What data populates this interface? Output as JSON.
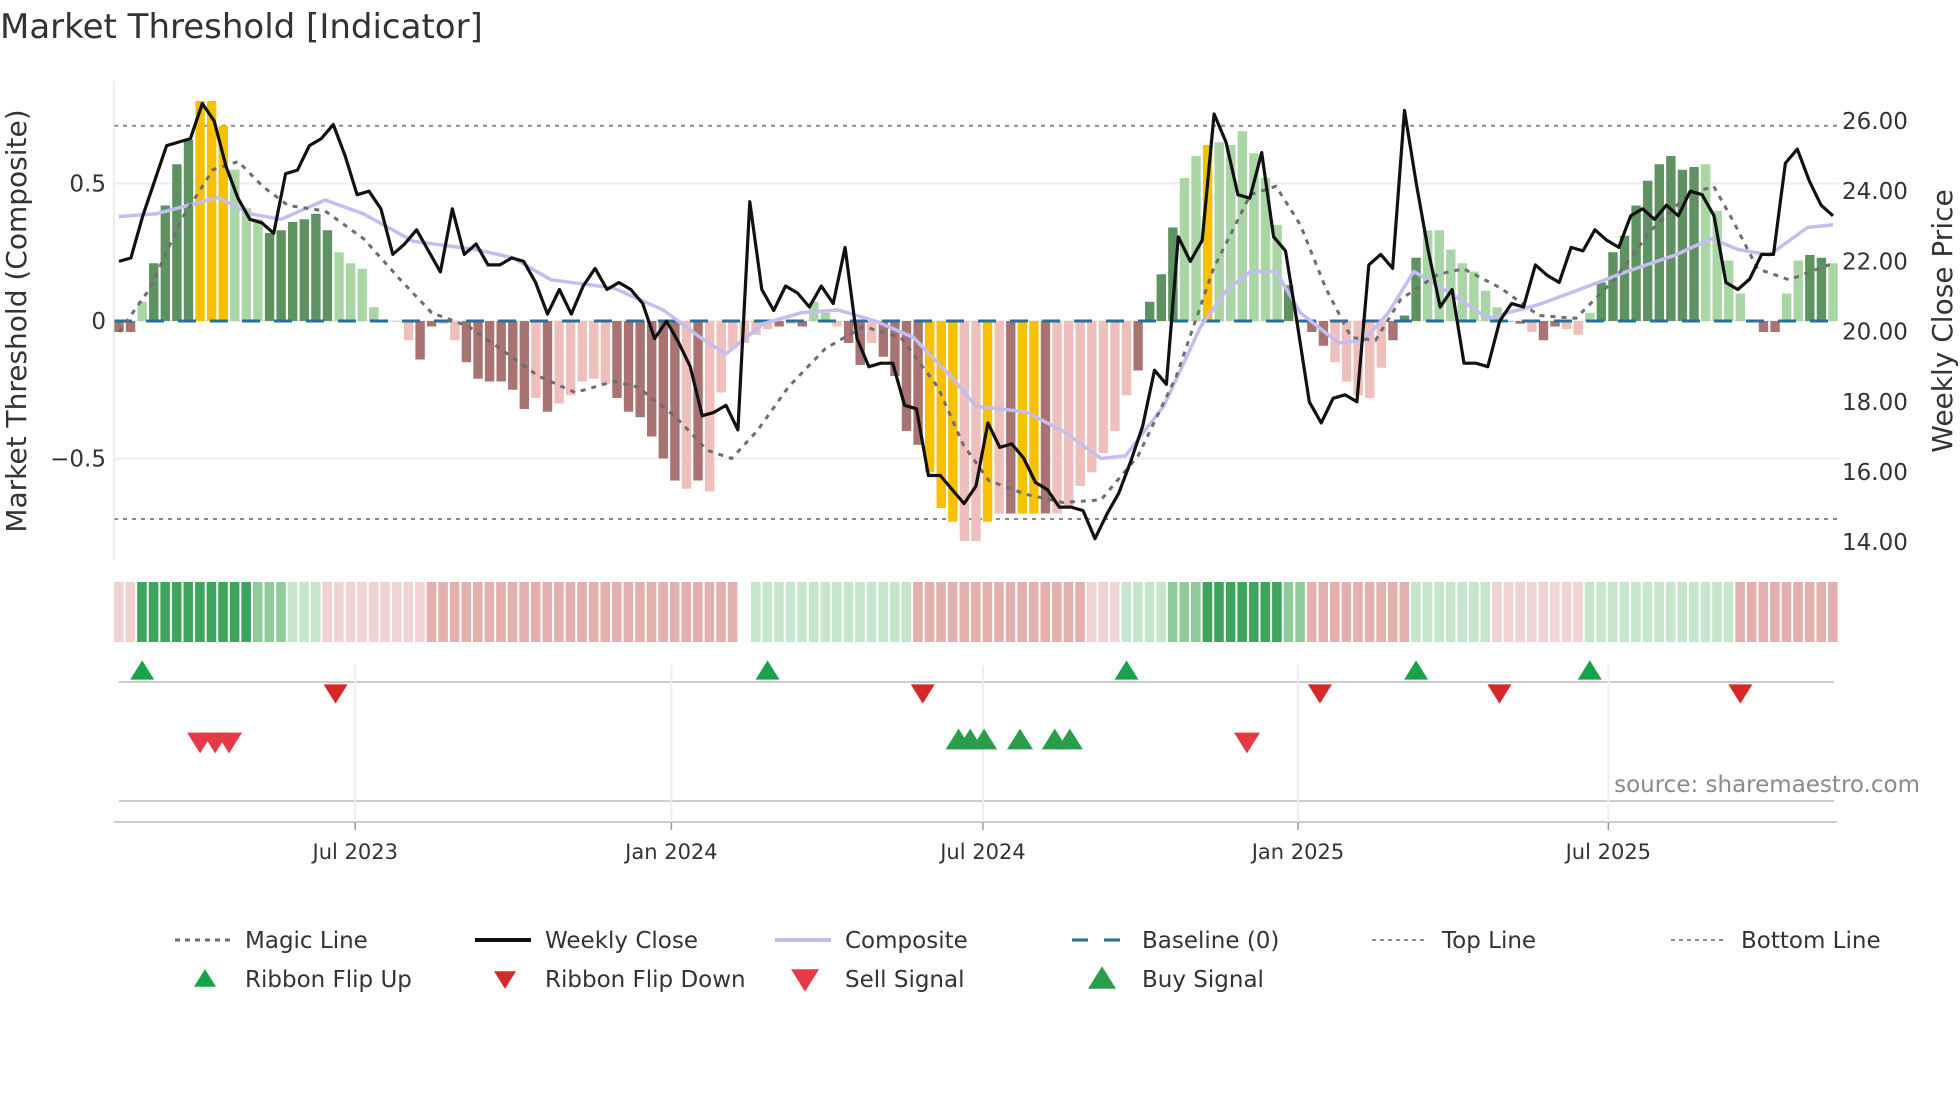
{
  "chart_data": {
    "type": "bar",
    "title": "Market Threshold [Indicator]",
    "ylabel": "Market Threshold (Composite)",
    "y2label": "Weekly Close Price",
    "source": "source: sharemaestro.com",
    "ylim": [
      -0.87,
      0.87
    ],
    "y2lim": [
      13.6,
      27.3
    ],
    "yticks": [
      {
        "v": 0.5,
        "label": "0.5"
      },
      {
        "v": 0,
        "label": "0"
      },
      {
        "v": -0.5,
        "label": "−0.5"
      }
    ],
    "y2ticks": [
      {
        "v": 26,
        "label": "26.00"
      },
      {
        "v": 24,
        "label": "24.00"
      },
      {
        "v": 22,
        "label": "22.00"
      },
      {
        "v": 20,
        "label": "20.00"
      },
      {
        "v": 18,
        "label": "18.00"
      },
      {
        "v": 16,
        "label": "16.00"
      },
      {
        "v": 14,
        "label": "14.00"
      }
    ],
    "xticks": [
      {
        "week": 20.4,
        "label": "Jul 2023"
      },
      {
        "week": 47.7,
        "label": "Jan 2024"
      },
      {
        "week": 74.6,
        "label": "Jul 2024"
      },
      {
        "week": 101.8,
        "label": "Jan 2025"
      },
      {
        "week": 128.6,
        "label": "Jul 2025"
      }
    ],
    "top_line": 0.71,
    "bottom_line": -0.72,
    "baseline": 0,
    "histogram": {
      "values": [
        -0.04,
        -0.04,
        0.07,
        0.21,
        0.42,
        0.57,
        0.66,
        0.8,
        0.8,
        0.71,
        0.55,
        0.41,
        0.37,
        0.32,
        0.33,
        0.36,
        0.37,
        0.39,
        0.33,
        0.25,
        0.21,
        0.19,
        0.05,
        0,
        0,
        -0.07,
        -0.14,
        -0.02,
        -0.01,
        -0.07,
        -0.15,
        -0.21,
        -0.22,
        -0.22,
        -0.25,
        -0.32,
        -0.28,
        -0.33,
        -0.3,
        -0.27,
        -0.22,
        -0.21,
        -0.23,
        -0.28,
        -0.33,
        -0.35,
        -0.42,
        -0.5,
        -0.58,
        -0.61,
        -0.58,
        -0.62,
        -0.26,
        -0.1,
        -0.08,
        -0.05,
        -0.03,
        -0.02,
        -0.01,
        -0.02,
        0.07,
        0.03,
        -0.02,
        -0.08,
        -0.16,
        -0.08,
        -0.13,
        -0.2,
        -0.4,
        -0.45,
        -0.55,
        -0.68,
        -0.73,
        -0.8,
        -0.8,
        -0.73,
        -0.7,
        -0.7,
        -0.7,
        -0.7,
        -0.7,
        -0.7,
        -0.68,
        -0.6,
        -0.55,
        -0.48,
        -0.4,
        -0.27,
        -0.18,
        0.07,
        0.17,
        0.34,
        0.52,
        0.6,
        0.64,
        0.65,
        0.64,
        0.69,
        0.61,
        0.52,
        0.35,
        0.13,
        0,
        -0.04,
        -0.09,
        -0.15,
        -0.22,
        -0.27,
        -0.28,
        -0.17,
        -0.07,
        0.02,
        0.23,
        0.33,
        0.33,
        0.26,
        0.21,
        0.18,
        0.11,
        0.05,
        0,
        -0.01,
        -0.04,
        -0.07,
        -0.02,
        -0.03,
        -0.05,
        0.03,
        0.14,
        0.25,
        0.31,
        0.42,
        0.51,
        0.57,
        0.6,
        0.55,
        0.56,
        0.57,
        0.4,
        0.22,
        0.1,
        0,
        -0.04,
        -0.04,
        0.1,
        0.22,
        0.24,
        0.23,
        0.21
      ],
      "tones": "ddlddddggglllddddddlllllllddllddddddldlllllddddddldlllllldldlllddlddddgggllgldggdlllllllddddllglllllldddd lllldddlllllllddldd llddddddddd llldddllddll",
      "colors": {
        "pos_strong": "#5e9260",
        "pos_weak": "#a9d6a4",
        "neg_strong": "#a87370",
        "neg_weak": "#efbfbb",
        "extreme": "#f7c000"
      }
    },
    "weekly_close": [
      22.0,
      22.1,
      23.3,
      24.3,
      25.3,
      25.4,
      25.5,
      26.5,
      26.0,
      24.7,
      23.8,
      23.2,
      23.1,
      22.8,
      24.5,
      24.6,
      25.3,
      25.5,
      25.9,
      25.0,
      23.9,
      24.0,
      23.5,
      22.2,
      22.5,
      22.9,
      22.3,
      21.7,
      23.5,
      22.2,
      22.5,
      21.9,
      21.9,
      22.1,
      22.0,
      21.4,
      20.5,
      21.2,
      20.5,
      21.3,
      21.8,
      21.2,
      21.4,
      21.2,
      20.8,
      19.8,
      20.3,
      19.7,
      19.0,
      17.6,
      17.7,
      17.9,
      17.2,
      23.7,
      21.2,
      20.6,
      21.3,
      21.1,
      20.7,
      21.3,
      20.8,
      22.4,
      19.8,
      19.0,
      19.1,
      19.1,
      17.9,
      17.8,
      15.9,
      15.9,
      15.5,
      15.1,
      15.6,
      17.4,
      16.7,
      16.8,
      16.4,
      15.7,
      15.5,
      15.0,
      15.0,
      14.9,
      14.1,
      14.8,
      15.4,
      16.3,
      17.3,
      18.9,
      18.5,
      22.7,
      22.0,
      22.6,
      26.2,
      25.4,
      23.9,
      23.8,
      25.1,
      22.7,
      22.3,
      20.2,
      18.0,
      17.4,
      18.1,
      18.2,
      18.0,
      21.9,
      22.2,
      21.8,
      26.3,
      24.2,
      22.3,
      20.7,
      21.2,
      19.1,
      19.1,
      19.0,
      20.3,
      20.8,
      20.7,
      21.9,
      21.6,
      21.4,
      22.4,
      22.3,
      22.9,
      22.6,
      22.4,
      23.3,
      23.5,
      23.2,
      23.6,
      23.3,
      24.0,
      23.9,
      23.3,
      21.4,
      21.2,
      21.5,
      22.2,
      22.2,
      24.8,
      25.2,
      24.3,
      23.6,
      23.3
    ],
    "magic_line": [
      [
        0,
        -0.04
      ],
      [
        2.7,
        0.12
      ],
      [
        5.4,
        0.37
      ],
      [
        8.1,
        0.55
      ],
      [
        10.3,
        0.58
      ],
      [
        12.4,
        0.49
      ],
      [
        14.6,
        0.42
      ],
      [
        17.8,
        0.4
      ],
      [
        21.1,
        0.3
      ],
      [
        24.3,
        0.15
      ],
      [
        27,
        0.03
      ],
      [
        30.2,
        -0.02
      ],
      [
        32.9,
        -0.1
      ],
      [
        36.2,
        -0.2
      ],
      [
        39.4,
        -0.26
      ],
      [
        42.7,
        -0.22
      ],
      [
        44.8,
        -0.24
      ],
      [
        48.1,
        -0.35
      ],
      [
        50.8,
        -0.47
      ],
      [
        52.9,
        -0.5
      ],
      [
        55.1,
        -0.4
      ],
      [
        57.8,
        -0.24
      ],
      [
        61,
        -0.1
      ],
      [
        64.3,
        -0.02
      ],
      [
        67.5,
        -0.06
      ],
      [
        70.7,
        -0.24
      ],
      [
        72.9,
        -0.45
      ],
      [
        75.1,
        -0.58
      ],
      [
        78.3,
        -0.63
      ],
      [
        81.5,
        -0.66
      ],
      [
        84.8,
        -0.65
      ],
      [
        88,
        -0.49
      ],
      [
        91.3,
        -0.2
      ],
      [
        94.5,
        0.19
      ],
      [
        97.7,
        0.46
      ],
      [
        99.9,
        0.49
      ],
      [
        102,
        0.35
      ],
      [
        104.2,
        0.12
      ],
      [
        106.4,
        -0.06
      ],
      [
        108.5,
        -0.07
      ],
      [
        110.7,
        0.08
      ],
      [
        113.9,
        0.17
      ],
      [
        116.1,
        0.19
      ],
      [
        119.3,
        0.12
      ],
      [
        122.6,
        0.02
      ],
      [
        125.8,
        0.01
      ],
      [
        129.1,
        0.15
      ],
      [
        132.3,
        0.33
      ],
      [
        135.5,
        0.46
      ],
      [
        137.7,
        0.49
      ],
      [
        139.3,
        0.37
      ],
      [
        141.5,
        0.19
      ],
      [
        144.2,
        0.15
      ],
      [
        148,
        0.21
      ]
    ],
    "composite_line": [
      [
        0,
        0.38
      ],
      [
        3.2,
        0.39
      ],
      [
        8.6,
        0.45
      ],
      [
        11.3,
        0.39
      ],
      [
        14,
        0.37
      ],
      [
        17.8,
        0.44
      ],
      [
        21.1,
        0.39
      ],
      [
        25.4,
        0.29
      ],
      [
        30.8,
        0.26
      ],
      [
        34,
        0.23
      ],
      [
        37.3,
        0.15
      ],
      [
        42.7,
        0.12
      ],
      [
        47,
        0.04
      ],
      [
        50.2,
        -0.06
      ],
      [
        52.4,
        -0.12
      ],
      [
        55.6,
        -0.01
      ],
      [
        58.9,
        0.03
      ],
      [
        62.1,
        0.04
      ],
      [
        65.3,
        0
      ],
      [
        68.6,
        -0.06
      ],
      [
        71.8,
        -0.2
      ],
      [
        74,
        -0.31
      ],
      [
        78.3,
        -0.33
      ],
      [
        81.5,
        -0.4
      ],
      [
        84.8,
        -0.5
      ],
      [
        86.9,
        -0.49
      ],
      [
        90.2,
        -0.31
      ],
      [
        93.4,
        -0.02
      ],
      [
        95.6,
        0.11
      ],
      [
        97.7,
        0.18
      ],
      [
        99.9,
        0.18
      ],
      [
        102,
        0.03
      ],
      [
        105.3,
        -0.08
      ],
      [
        107.5,
        -0.07
      ],
      [
        109.6,
        0.03
      ],
      [
        111.8,
        0.18
      ],
      [
        115,
        0.1
      ],
      [
        118.2,
        0.01
      ],
      [
        122.6,
        0.06
      ],
      [
        125.8,
        0.11
      ],
      [
        130.2,
        0.18
      ],
      [
        134.4,
        0.24
      ],
      [
        137.5,
        0.3
      ],
      [
        139.8,
        0.26
      ],
      [
        142.5,
        0.24
      ],
      [
        145.8,
        0.34
      ],
      [
        148,
        0.35
      ]
    ],
    "ribbon": {
      "runs": [
        [
          2,
          -1
        ],
        [
          10,
          3
        ],
        [
          3,
          2
        ],
        [
          3,
          1
        ],
        [
          9,
          -1
        ],
        [
          27,
          -2
        ],
        [
          1,
          0
        ],
        [
          14,
          1
        ],
        [
          15,
          -2
        ],
        [
          3,
          -1
        ],
        [
          4,
          1
        ],
        [
          3,
          2
        ],
        [
          7,
          3
        ],
        [
          2,
          2
        ],
        [
          9,
          -2
        ],
        [
          7,
          1
        ],
        [
          8,
          -1
        ],
        [
          13,
          1
        ],
        [
          9,
          -2
        ]
      ],
      "colors": {
        "3": "#3fa55c",
        "2": "#8fcb9b",
        "1": "#c6e6cc",
        "0": "#ffffff",
        "-1": "#f1d3d3",
        "-2": "#e3b0ae"
      }
    },
    "ribbon_flip_up": [
      2,
      56,
      87,
      112,
      127
    ],
    "ribbon_flip_down": [
      18.7,
      69.4,
      103.7,
      119.2,
      140
    ],
    "sell_signal": [
      7,
      8.3,
      9.5,
      97.4
    ],
    "buy_signal": [
      72.5,
      73.5,
      74.7,
      77.8,
      80.8,
      82.1
    ],
    "legend": [
      {
        "label": "Magic Line",
        "kind": "dotted",
        "color": "#6e6e6e"
      },
      {
        "label": "Weekly Close",
        "kind": "solid",
        "color": "#111111"
      },
      {
        "label": "Composite",
        "kind": "thick",
        "color": "#c4bdf0"
      },
      {
        "label": "Baseline (0)",
        "kind": "dashed",
        "color": "#2a6f97"
      },
      {
        "label": "Top Line",
        "kind": "fine-dotted",
        "color": "#8a8a8a"
      },
      {
        "label": "Bottom Line",
        "kind": "fine-dotted",
        "color": "#8a8a8a"
      },
      {
        "label": "Ribbon Flip Up",
        "kind": "tri-up-small",
        "color": "#17a34a"
      },
      {
        "label": "Ribbon Flip Down",
        "kind": "tri-down-small",
        "color": "#d62828"
      },
      {
        "label": "Sell Signal",
        "kind": "tri-down",
        "color": "#e63946"
      },
      {
        "label": "Buy Signal",
        "kind": "tri-up",
        "color": "#2a9d4a"
      }
    ],
    "legend_position": "bottom"
  }
}
